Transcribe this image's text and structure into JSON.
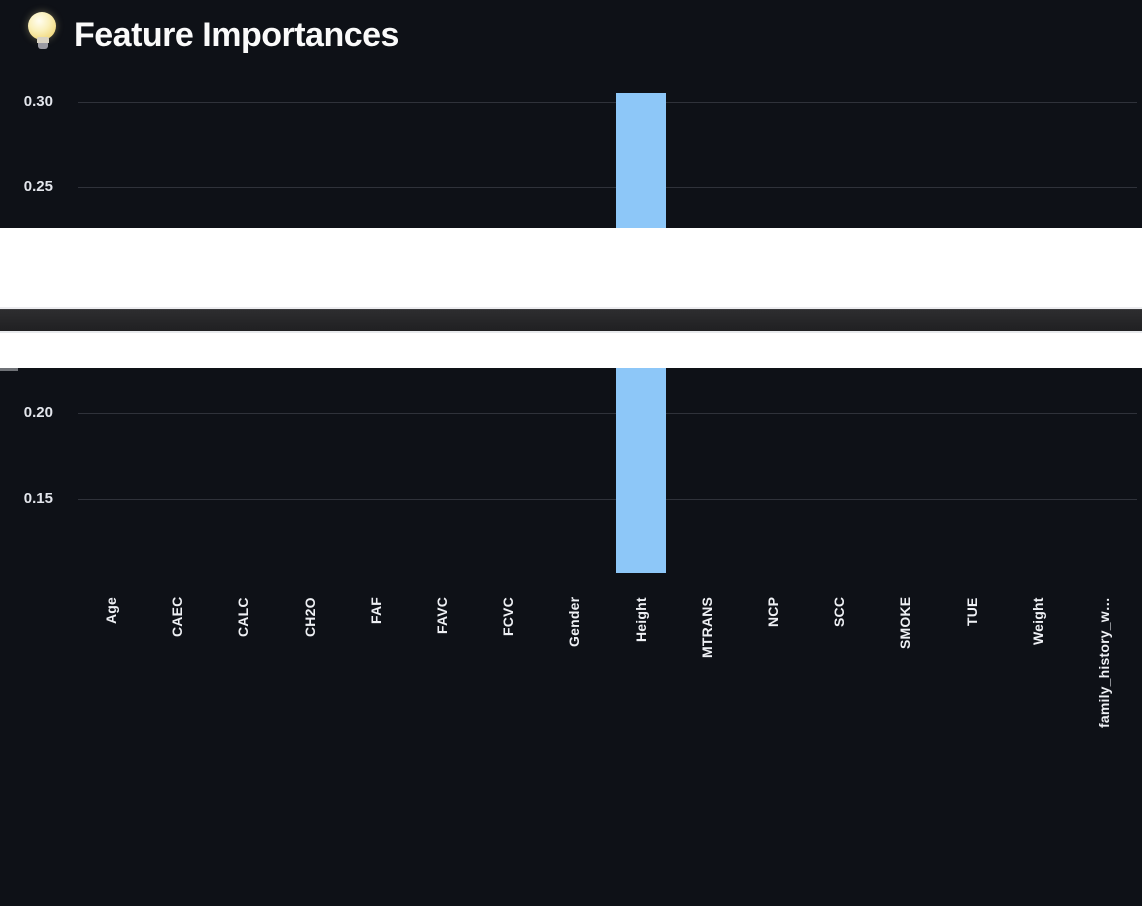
{
  "page": {
    "title": "Feature Importances",
    "title_icon": "lightbulb-emoji"
  },
  "colors": {
    "background": "#0e1117",
    "title_text": "#fafafa",
    "axis_text": "#e3e6ec",
    "gridline": "#2f323a",
    "bar": "#8dc7f8",
    "divider": "#262628",
    "gap_band": "#ffffff"
  },
  "chart_data": {
    "type": "bar",
    "title": "Feature Importances",
    "categories": [
      "Age",
      "CAEC",
      "CALC",
      "CH2O",
      "FAF",
      "FAVC",
      "FCVC",
      "Gender",
      "Height",
      "MTRANS",
      "NCP",
      "SCC",
      "SMOKE",
      "TUE",
      "Weight",
      "family_history_w…"
    ],
    "series": [
      {
        "name": "importance",
        "values": [
          null,
          null,
          null,
          null,
          null,
          null,
          null,
          null,
          0.305,
          null,
          null,
          null,
          null,
          null,
          null,
          null
        ]
      }
    ],
    "visible_bar": {
      "category": "Height",
      "value": 0.305
    },
    "xlabel": "",
    "ylabel": "",
    "grid": true,
    "legend": false,
    "y_axis": {
      "top_segment_ticks": [
        "0.30",
        "0.25"
      ],
      "bottom_segment_ticks": [
        "0.20",
        "0.15"
      ]
    }
  }
}
